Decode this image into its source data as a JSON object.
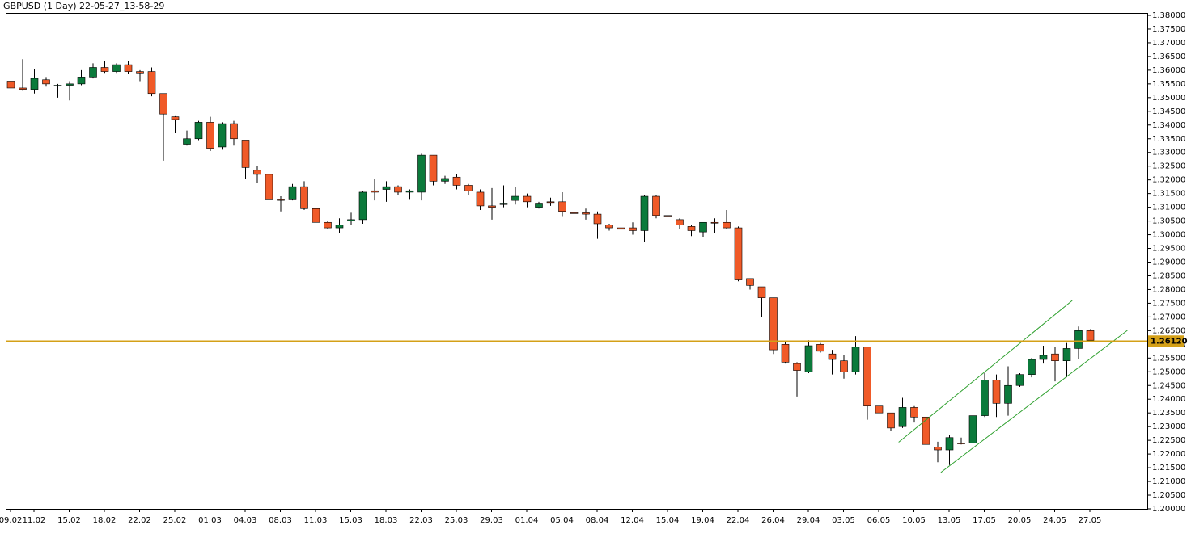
{
  "chart_data": {
    "type": "candlestick",
    "title": "GBPUSD (1 Day) 22-05-27_13-58-29",
    "categories": [
      "09.02",
      null,
      "11.02",
      null,
      null,
      "15.02",
      null,
      null,
      "18.02",
      null,
      null,
      "22.02",
      null,
      null,
      "25.02",
      null,
      null,
      "01.03",
      null,
      null,
      "04.03",
      null,
      null,
      "08.03",
      null,
      null,
      "11.03",
      null,
      null,
      "15.03",
      null,
      null,
      "18.03",
      null,
      null,
      "22.03",
      null,
      null,
      "25.03",
      null,
      null,
      "29.03",
      null,
      null,
      "01.04",
      null,
      null,
      "05.04",
      null,
      null,
      "08.04",
      null,
      null,
      "12.04",
      null,
      null,
      "15.04",
      null,
      null,
      "19.04",
      null,
      null,
      "22.04",
      null,
      null,
      "26.04",
      null,
      null,
      "29.04",
      null,
      null,
      "03.05",
      null,
      null,
      "06.05",
      null,
      null,
      "10.05",
      null,
      null,
      "13.05",
      null,
      null,
      "17.05",
      null,
      null,
      "20.05",
      null,
      null,
      "24.05",
      null,
      null,
      "27.05"
    ],
    "open": [
      1.356,
      1.3535,
      1.353,
      1.3565,
      1.3545,
      1.3545,
      1.355,
      1.3575,
      1.361,
      1.3595,
      1.362,
      1.3595,
      1.3595,
      1.3515,
      1.343,
      1.333,
      1.335,
      1.341,
      1.332,
      1.3405,
      1.3345,
      1.3235,
      1.322,
      1.313,
      1.313,
      1.3175,
      1.3095,
      1.3045,
      1.3025,
      1.305,
      1.3055,
      1.316,
      1.3165,
      1.3175,
      1.3155,
      1.3155,
      1.329,
      1.3195,
      1.321,
      1.318,
      1.3155,
      1.3105,
      1.311,
      1.3125,
      1.314,
      1.31,
      1.312,
      1.312,
      1.308,
      1.308,
      1.3075,
      1.3035,
      1.3025,
      1.3025,
      1.3015,
      1.314,
      1.307,
      1.3055,
      1.303,
      1.301,
      1.3045,
      1.3045,
      1.3025,
      1.284,
      1.281,
      1.277,
      1.26,
      1.253,
      1.25,
      1.26,
      1.2565,
      1.254,
      1.25,
      1.259,
      1.2375,
      1.235,
      1.23,
      1.237,
      1.2335,
      1.2225,
      1.2215,
      1.224,
      1.224,
      1.234,
      1.247,
      1.2385,
      1.245,
      1.249,
      1.2545,
      1.2565,
      1.254,
      1.2585,
      1.265
    ],
    "high": [
      1.359,
      1.364,
      1.3605,
      1.3575,
      1.355,
      1.356,
      1.36,
      1.3625,
      1.3635,
      1.3625,
      1.3635,
      1.36,
      1.361,
      1.3515,
      1.3435,
      1.338,
      1.3415,
      1.343,
      1.341,
      1.3415,
      1.3345,
      1.325,
      1.3225,
      1.314,
      1.3185,
      1.3195,
      1.312,
      1.305,
      1.306,
      1.308,
      1.316,
      1.3205,
      1.3195,
      1.318,
      1.3165,
      1.3295,
      1.329,
      1.3215,
      1.322,
      1.3185,
      1.3165,
      1.317,
      1.318,
      1.3175,
      1.315,
      1.312,
      1.3135,
      1.3155,
      1.3095,
      1.3095,
      1.3085,
      1.304,
      1.3055,
      1.3045,
      1.3145,
      1.3145,
      1.3075,
      1.306,
      1.3035,
      1.3045,
      1.306,
      1.309,
      1.303,
      1.284,
      1.281,
      1.277,
      1.261,
      1.2535,
      1.2615,
      1.2605,
      1.258,
      1.256,
      1.263,
      1.259,
      1.2375,
      1.235,
      1.2405,
      1.2375,
      1.24,
      1.2245,
      1.227,
      1.226,
      1.2345,
      1.2495,
      1.249,
      1.252,
      1.2495,
      1.255,
      1.2595,
      1.259,
      1.2605,
      1.2665,
      1.2655
    ],
    "low": [
      1.3525,
      1.3525,
      1.3515,
      1.354,
      1.35,
      1.349,
      1.3545,
      1.357,
      1.359,
      1.359,
      1.3585,
      1.356,
      1.3505,
      1.327,
      1.337,
      1.3325,
      1.3345,
      1.3305,
      1.331,
      1.3325,
      1.3205,
      1.319,
      1.3105,
      1.3085,
      1.3125,
      1.309,
      1.3025,
      1.302,
      1.3005,
      1.3035,
      1.304,
      1.3125,
      1.312,
      1.3145,
      1.313,
      1.3125,
      1.318,
      1.3185,
      1.3165,
      1.3145,
      1.309,
      1.3055,
      1.31,
      1.311,
      1.31,
      1.3095,
      1.3105,
      1.3065,
      1.3055,
      1.3055,
      1.2985,
      1.3015,
      1.3005,
      1.3,
      1.2975,
      1.306,
      1.306,
      1.302,
      1.2995,
      1.299,
      1.3005,
      1.302,
      1.283,
      1.28,
      1.27,
      1.2565,
      1.253,
      1.241,
      1.2495,
      1.257,
      1.249,
      1.2475,
      1.249,
      1.2325,
      1.227,
      1.2285,
      1.2295,
      1.2315,
      1.223,
      1.217,
      1.216,
      1.2235,
      1.2225,
      1.2335,
      1.2335,
      1.234,
      1.2445,
      1.248,
      1.253,
      1.2465,
      1.248,
      1.2545,
      1.261
    ],
    "close": [
      1.3535,
      1.353,
      1.357,
      1.355,
      1.3545,
      1.355,
      1.3575,
      1.361,
      1.3595,
      1.362,
      1.3595,
      1.359,
      1.3515,
      1.344,
      1.342,
      1.335,
      1.341,
      1.3315,
      1.3405,
      1.335,
      1.3245,
      1.322,
      1.313,
      1.3125,
      1.3175,
      1.3095,
      1.3045,
      1.3025,
      1.3035,
      1.3055,
      1.3155,
      1.3155,
      1.3175,
      1.3155,
      1.316,
      1.329,
      1.3195,
      1.3205,
      1.318,
      1.316,
      1.3105,
      1.31,
      1.3115,
      1.314,
      1.312,
      1.3115,
      1.3118,
      1.3085,
      1.3078,
      1.3075,
      1.304,
      1.3025,
      1.302,
      1.3015,
      1.314,
      1.307,
      1.3065,
      1.3035,
      1.3015,
      1.3045,
      1.3043,
      1.3025,
      1.2835,
      1.2815,
      1.277,
      1.258,
      1.2535,
      1.2505,
      1.2595,
      1.2575,
      1.2545,
      1.25,
      1.259,
      1.2375,
      1.235,
      1.2295,
      1.237,
      1.2335,
      1.2235,
      1.2215,
      1.226,
      1.2238,
      1.234,
      1.247,
      1.2385,
      1.245,
      1.249,
      1.2545,
      1.256,
      1.254,
      1.2585,
      1.265,
      1.2615
    ],
    "up_color": "#0b7a3b",
    "down_color": "#f05a28",
    "ylim": [
      1.2,
      1.38
    ],
    "yticks": [
      {
        "value": 1.2,
        "label": "1.20000"
      },
      {
        "value": 1.205,
        "label": "1.20500"
      },
      {
        "value": 1.21,
        "label": "1.21000"
      },
      {
        "value": 1.215,
        "label": "1.21500"
      },
      {
        "value": 1.22,
        "label": "1.22000"
      },
      {
        "value": 1.225,
        "label": "1.22500"
      },
      {
        "value": 1.23,
        "label": "1.23000"
      },
      {
        "value": 1.235,
        "label": "1.23500"
      },
      {
        "value": 1.24,
        "label": "1.24000"
      },
      {
        "value": 1.245,
        "label": "1.24500"
      },
      {
        "value": 1.25,
        "label": "1.25000"
      },
      {
        "value": 1.255,
        "label": "1.25500"
      },
      {
        "value": 1.26,
        "label": "1.26000"
      },
      {
        "value": 1.265,
        "label": "1.26500"
      },
      {
        "value": 1.27,
        "label": "1.27000"
      },
      {
        "value": 1.275,
        "label": "1.27500"
      },
      {
        "value": 1.28,
        "label": "1.28000"
      },
      {
        "value": 1.285,
        "label": "1.28500"
      },
      {
        "value": 1.29,
        "label": "1.29000"
      },
      {
        "value": 1.295,
        "label": "1.29500"
      },
      {
        "value": 1.3,
        "label": "1.30000"
      },
      {
        "value": 1.305,
        "label": "1.30500"
      },
      {
        "value": 1.31,
        "label": "1.31000"
      },
      {
        "value": 1.315,
        "label": "1.31500"
      },
      {
        "value": 1.32,
        "label": "1.32000"
      },
      {
        "value": 1.325,
        "label": "1.32500"
      },
      {
        "value": 1.33,
        "label": "1.33000"
      },
      {
        "value": 1.335,
        "label": "1.33500"
      },
      {
        "value": 1.34,
        "label": "1.34000"
      },
      {
        "value": 1.345,
        "label": "1.34500"
      },
      {
        "value": 1.35,
        "label": "1.35000"
      },
      {
        "value": 1.355,
        "label": "1.35500"
      },
      {
        "value": 1.36,
        "label": "1.36000"
      },
      {
        "value": 1.365,
        "label": "1.36500"
      },
      {
        "value": 1.37,
        "label": "1.37000"
      },
      {
        "value": 1.375,
        "label": "1.37500"
      },
      {
        "value": 1.38,
        "label": "1.38000"
      }
    ],
    "current_price": {
      "value": 1.2612,
      "label": "1.26120",
      "color": "#d4a017"
    },
    "channel_lines": [
      {
        "color": "#2ea02e",
        "x": [
          75.7,
          90.5
        ],
        "y": [
          1.2243,
          1.276
        ]
      },
      {
        "color": "#2ea02e",
        "x": [
          79.3,
          95.2
        ],
        "y": [
          1.2133,
          1.2651
        ]
      }
    ]
  }
}
